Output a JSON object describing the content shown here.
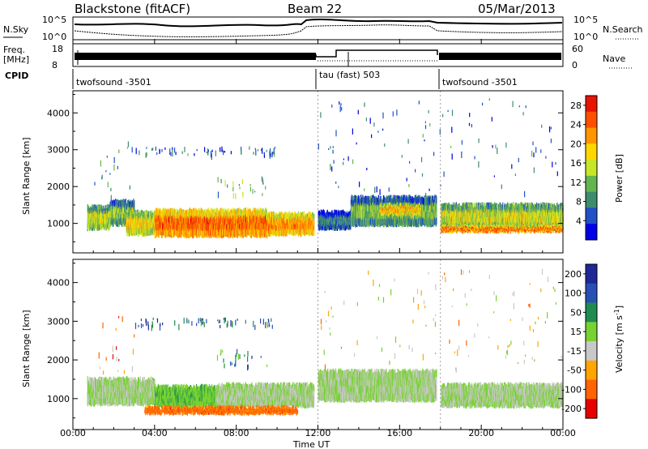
{
  "header": {
    "radar": "Blackstone (fitACF)",
    "beam": "Beam 22",
    "date": "05/Mar/2013"
  },
  "nsky_panel": {
    "left_label": "N.Sky",
    "right_label": "N.Search",
    "left_ticks": [
      "10^5",
      "10^0"
    ],
    "right_ticks": [
      "10^5",
      "10^0"
    ]
  },
  "freq_panel": {
    "left_label_1": "Freq.",
    "left_label_2": "[MHz]",
    "left_ticks": [
      "18",
      "8"
    ],
    "right_label": "Nave",
    "right_ticks": [
      "60",
      "0"
    ]
  },
  "cpid": {
    "label": "CPID",
    "segments": [
      {
        "text": "twofsound -3501",
        "start": 0,
        "end": 12
      },
      {
        "text": "tau (fast) 503",
        "start": 12,
        "end": 18
      },
      {
        "text": "twofsound -3501",
        "start": 18,
        "end": 24
      }
    ]
  },
  "time_axis": {
    "label": "Time UT",
    "ticks": [
      "00:00",
      "04:00",
      "08:00",
      "12:00",
      "16:00",
      "20:00",
      "00:00"
    ]
  },
  "chart_data": [
    {
      "type": "heatmap",
      "title": "",
      "xlabel": "Time UT",
      "ylabel": "Slant Range [km]",
      "xlim": [
        0,
        24
      ],
      "ylim": [
        200,
        4600
      ],
      "yticks": [
        "1000",
        "2000",
        "3000",
        "4000"
      ],
      "colorbar": {
        "label": "Power [dB]",
        "ticks": [
          "4",
          "8",
          "12",
          "16",
          "20",
          "24",
          "28"
        ],
        "range": [
          0,
          30
        ],
        "colors": [
          "#0000e6",
          "#2050c8",
          "#3c8c6e",
          "#64b450",
          "#c8e628",
          "#ffd700",
          "#ff9600",
          "#ff5000",
          "#e61400"
        ]
      },
      "bands": [
        {
          "t0": 0.7,
          "t1": 1.8,
          "r0": 850,
          "r1": 1450,
          "p": 15
        },
        {
          "t0": 1.8,
          "t1": 3.0,
          "r0": 950,
          "r1": 1600,
          "p": 13
        },
        {
          "t0": 2.6,
          "t1": 4.0,
          "r0": 700,
          "r1": 1300,
          "p": 18
        },
        {
          "t0": 4.0,
          "t1": 9.5,
          "r0": 650,
          "r1": 1350,
          "p": 24
        },
        {
          "t0": 9.5,
          "t1": 11.8,
          "r0": 700,
          "r1": 1250,
          "p": 22
        },
        {
          "t0": 12.0,
          "t1": 13.6,
          "r0": 850,
          "r1": 1300,
          "p": 8
        },
        {
          "t0": 13.6,
          "t1": 17.8,
          "r0": 950,
          "r1": 1700,
          "p": 12
        },
        {
          "t0": 15.0,
          "t1": 17.0,
          "r0": 1250,
          "r1": 1500,
          "p": 20
        },
        {
          "t0": 18.0,
          "t1": 24.0,
          "r0": 850,
          "r1": 1500,
          "p": 16
        },
        {
          "t0": 18.0,
          "t1": 24.0,
          "r0": 780,
          "r1": 900,
          "p": 24
        }
      ],
      "scatter": [
        {
          "t0": 1.0,
          "t1": 3.0,
          "r0": 1700,
          "r1": 3300,
          "p": 8
        },
        {
          "t0": 3.0,
          "t1": 10.0,
          "r0": 2900,
          "r1": 3100,
          "p": 6
        },
        {
          "t0": 7.0,
          "t1": 9.5,
          "r0": 1800,
          "r1": 2300,
          "p": 10
        },
        {
          "t0": 12.0,
          "t1": 24.0,
          "r0": 1800,
          "r1": 4400,
          "p": 6
        }
      ]
    },
    {
      "type": "heatmap",
      "title": "",
      "xlabel": "Time UT",
      "ylabel": "Slant Range [km]",
      "xlim": [
        0,
        24
      ],
      "ylim": [
        200,
        4600
      ],
      "yticks": [
        "1000",
        "2000",
        "3000",
        "4000"
      ],
      "colorbar": {
        "label": "Velocity [m s^-1]",
        "ticks": [
          "200",
          "100",
          "50",
          "15",
          "-15",
          "-50",
          "-100",
          "-200"
        ],
        "range": [
          -250,
          250
        ],
        "colors": [
          "#1e2896",
          "#2850b4",
          "#1e8c50",
          "#78d232",
          "#c8c8c8",
          "#ffa500",
          "#ff6400",
          "#e60000"
        ]
      },
      "bands": [
        {
          "t0": 0.7,
          "t1": 4.0,
          "r0": 850,
          "r1": 1500,
          "v": 0
        },
        {
          "t0": 4.0,
          "t1": 7.0,
          "r0": 800,
          "r1": 1300,
          "v": 40
        },
        {
          "t0": 7.0,
          "t1": 11.8,
          "r0": 800,
          "r1": 1350,
          "v": 0
        },
        {
          "t0": 3.5,
          "t1": 11.0,
          "r0": 620,
          "r1": 760,
          "v": -150
        },
        {
          "t0": 12.0,
          "t1": 17.8,
          "r0": 950,
          "r1": 1700,
          "v": 0
        },
        {
          "t0": 18.0,
          "t1": 24.0,
          "r0": 800,
          "r1": 1350,
          "v": 0
        }
      ],
      "scatter": [
        {
          "t0": 1.0,
          "t1": 3.0,
          "r0": 1700,
          "r1": 3300,
          "v": -120
        },
        {
          "t0": 3.0,
          "t1": 10.0,
          "r0": 2900,
          "r1": 3100,
          "v": 150
        },
        {
          "t0": 7.0,
          "t1": 9.5,
          "r0": 1800,
          "r1": 2300,
          "v": 100
        },
        {
          "t0": 12.0,
          "t1": 24.0,
          "r0": 1800,
          "r1": 4400,
          "v": -50
        }
      ]
    }
  ]
}
